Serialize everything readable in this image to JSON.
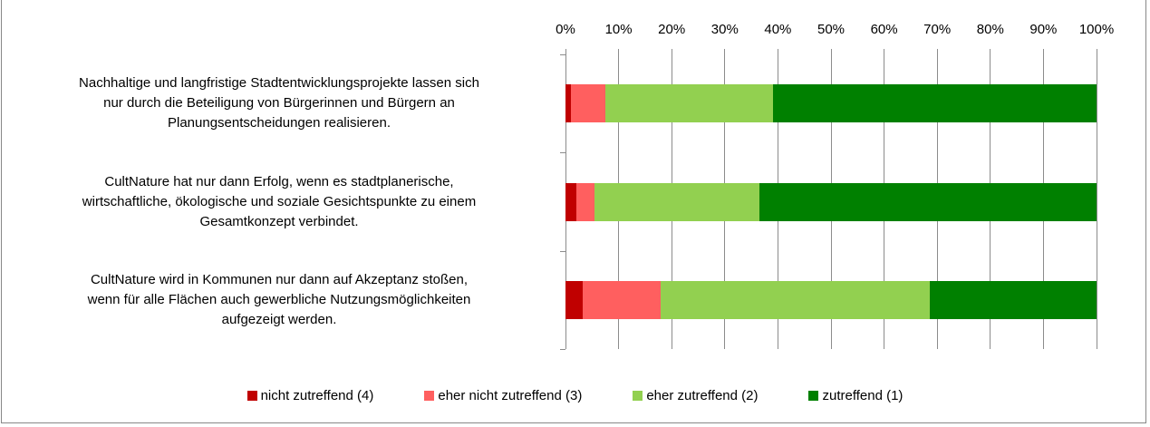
{
  "chart_data": {
    "type": "stacked-bar-horizontal",
    "categories": [
      "Nachhaltige und langfristige Stadtentwicklungsprojekte lassen sich\nnur durch die Beteiligung von Bürgerinnen und Bürgern an\nPlanungsentscheidungen realisieren.",
      "CultNature hat nur dann Erfolg, wenn es stadtplanerische,\nwirtschaftliche, ökologische und soziale Gesichtspunkte zu einem\nGesamtkonzept verbindet.",
      "CultNature wird in Kommunen nur dann auf Akzeptanz stoßen,\nwenn für alle Flächen auch gewerbliche Nutzungsmöglichkeiten\naufgezeigt werden."
    ],
    "series": [
      {
        "name": "nicht zutreffend (4)",
        "color": "#c00000",
        "values": [
          1,
          2,
          3.2
        ]
      },
      {
        "name": "eher nicht zutreffend (3)",
        "color": "#ff5f5f",
        "values": [
          6.5,
          3.5,
          14.7
        ]
      },
      {
        "name": "eher zutreffend (2)",
        "color": "#92d050",
        "values": [
          31.5,
          31,
          50.7
        ]
      },
      {
        "name": "zutreffend (1)",
        "color": "#008000",
        "values": [
          61,
          63.5,
          31.4
        ]
      }
    ],
    "xlim": [
      0,
      100
    ],
    "xticks": [
      {
        "value": 0,
        "label": "0%"
      },
      {
        "value": 10,
        "label": "10%"
      },
      {
        "value": 20,
        "label": "20%"
      },
      {
        "value": 30,
        "label": "30%"
      },
      {
        "value": 40,
        "label": "40%"
      },
      {
        "value": 50,
        "label": "50%"
      },
      {
        "value": 60,
        "label": "60%"
      },
      {
        "value": 70,
        "label": "70%"
      },
      {
        "value": 80,
        "label": "80%"
      },
      {
        "value": 90,
        "label": "90%"
      },
      {
        "value": 100,
        "label": "100%"
      }
    ],
    "grid": true,
    "legend": "bottom"
  }
}
